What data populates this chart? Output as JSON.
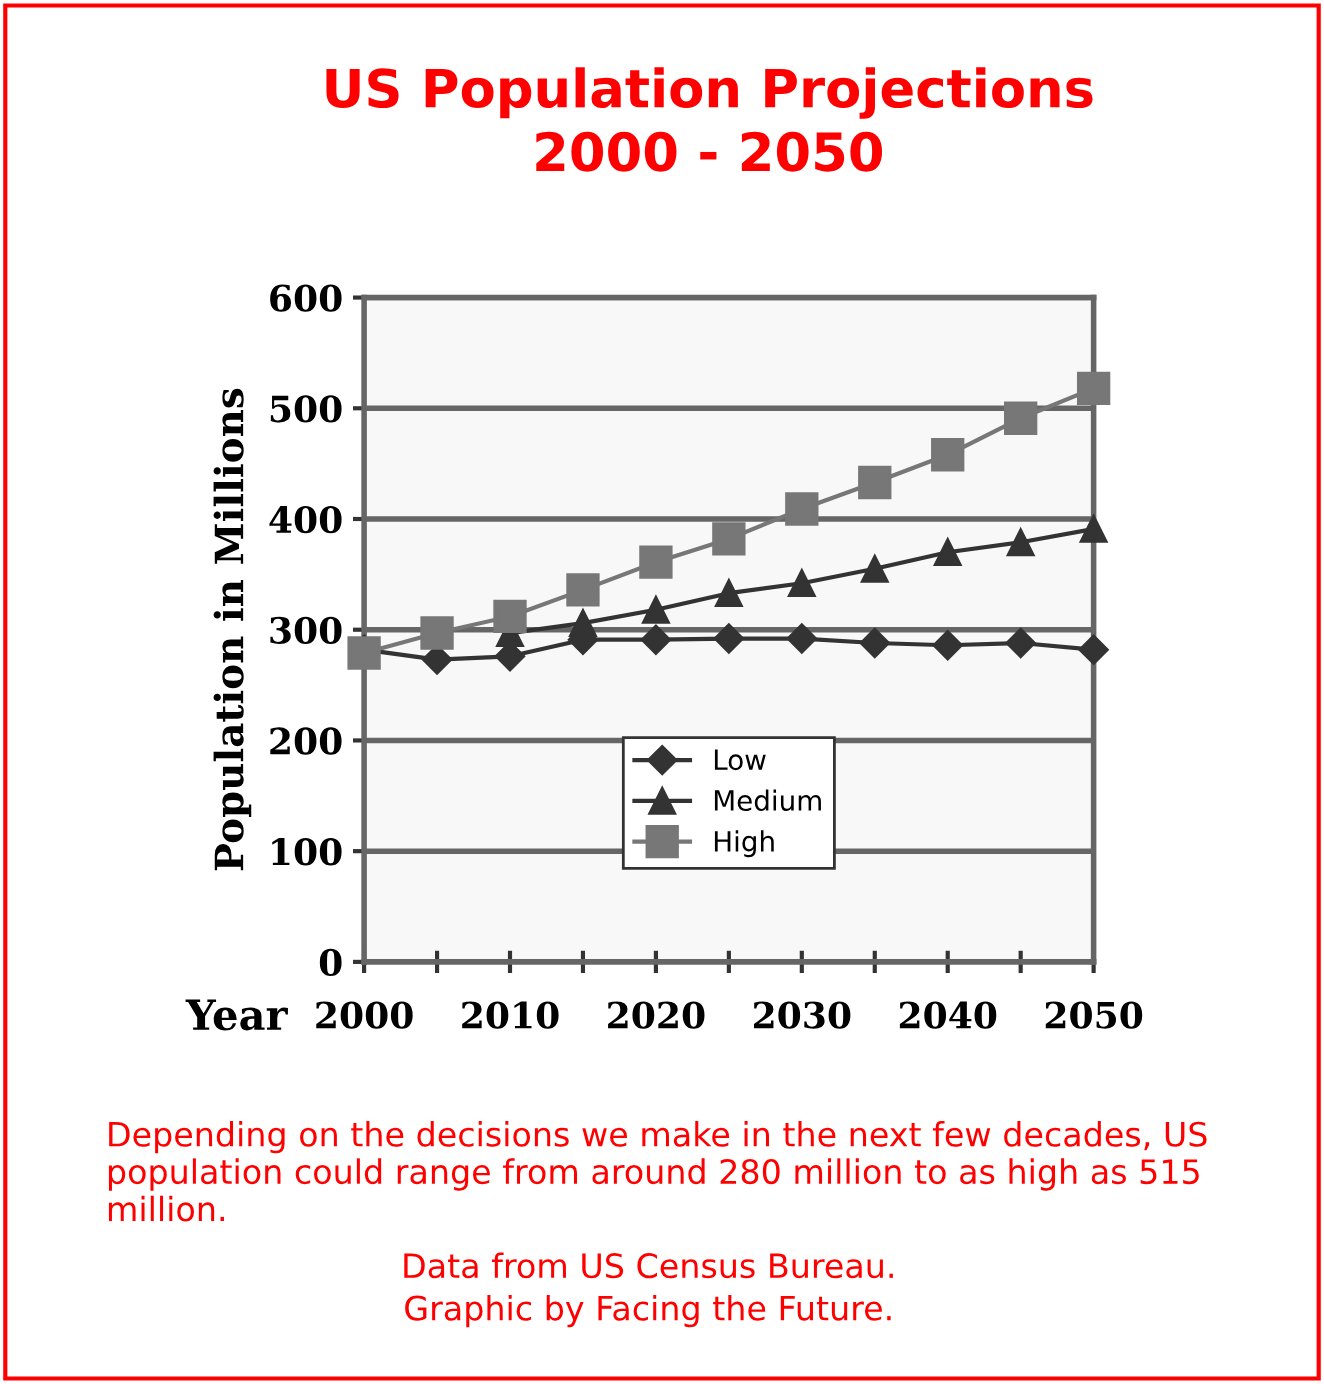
{
  "chart_data": {
    "type": "line",
    "title": "US Population Projections\n2000 - 2050",
    "xlabel": "Year",
    "ylabel": "Population in Millions",
    "x": [
      2000,
      2005,
      2010,
      2015,
      2020,
      2025,
      2030,
      2035,
      2040,
      2045,
      2050
    ],
    "series": [
      {
        "name": "Low",
        "color": "#333333",
        "marker": "diamond",
        "values": [
          282,
          273,
          276,
          291,
          291,
          292,
          292,
          288,
          286,
          288,
          282
        ]
      },
      {
        "name": "Medium",
        "color": "#333333",
        "marker": "triangle",
        "values": [
          null,
          null,
          297,
          306,
          318,
          333,
          342,
          355,
          370,
          379,
          391
        ]
      },
      {
        "name": "High",
        "color": "#777777",
        "marker": "square",
        "values": [
          279,
          297,
          312,
          336,
          361,
          382,
          409,
          433,
          458,
          491,
          518
        ]
      }
    ],
    "xlim": [
      2000,
      2050
    ],
    "xticks": [
      2000,
      {
        "value": 2005,
        "label": null
      },
      2010,
      {
        "value": 2015,
        "label": null
      },
      2020,
      {
        "value": 2025,
        "label": null
      },
      2030,
      {
        "value": 2035,
        "label": null
      },
      2040,
      {
        "value": 2045,
        "label": null
      },
      2050
    ],
    "ylim": [
      0,
      600
    ],
    "yticks": [
      0,
      100,
      200,
      300,
      400,
      500,
      600
    ],
    "grid": "y",
    "legend": "bottom",
    "line_style": "solid",
    "annotations": [
      "Depending on the decisions we make in the next few decades, US population could range from around 280 million to as high as 515 million.",
      "Data from US Census Bureau.\nGraphic by Facing the Future."
    ]
  }
}
